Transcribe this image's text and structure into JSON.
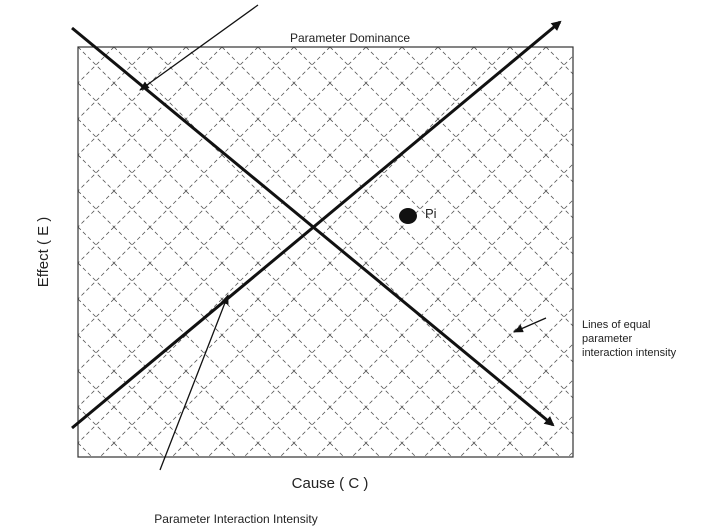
{
  "title": "Parameter Dominance",
  "y_axis_label": "Effect ( E )",
  "x_axis_label": "Cause ( C )",
  "bottom_label": "Parameter Interaction Intensity",
  "point_label": "Pi",
  "side_label": [
    "Lines of equal",
    "parameter",
    "interaction intensity"
  ]
}
